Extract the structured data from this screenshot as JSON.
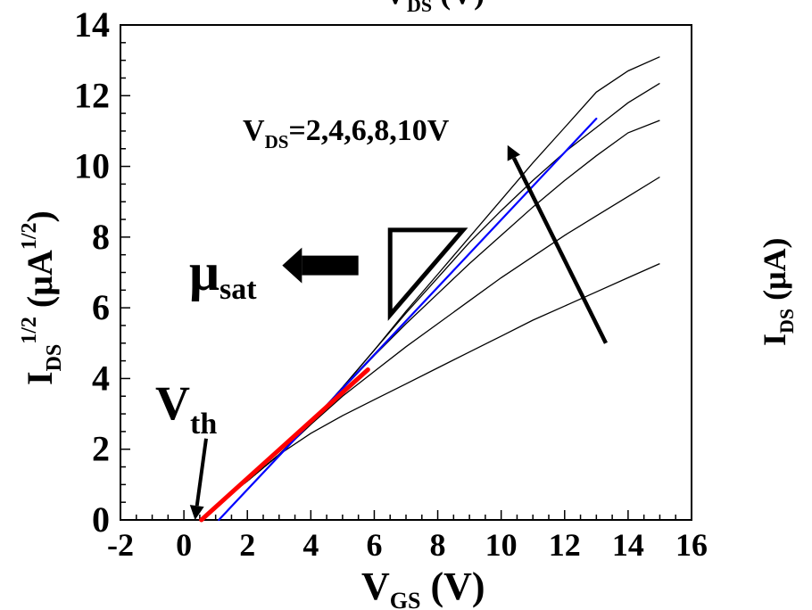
{
  "chart_data": {
    "type": "line",
    "top_label": {
      "main": "V",
      "sub": "DS",
      "rest": " (V)"
    },
    "xlabel": {
      "main": "V",
      "sub": "GS",
      "rest": " (V)"
    },
    "ylabel": {
      "main": "I",
      "sub": "DS",
      "sup": "1/2",
      "rest": " (μA",
      "rest_sup": "1/2",
      "close": ")"
    },
    "ylabel_right": {
      "main": "I",
      "sub": "DS",
      "rest": " (μA)"
    },
    "xlim": [
      -2,
      16
    ],
    "ylim": [
      0,
      14
    ],
    "xticks": [
      -2,
      0,
      2,
      4,
      6,
      8,
      10,
      12,
      14,
      16
    ],
    "yticks": [
      0,
      2,
      4,
      6,
      8,
      10,
      12,
      14
    ],
    "grid": false,
    "series": [
      {
        "color": "#000000",
        "x": [
          0.5,
          1,
          2,
          3,
          4,
          5,
          6,
          7,
          8,
          9,
          10,
          11,
          12,
          13,
          14,
          15
        ],
        "y": [
          0.0,
          0.4,
          1.1,
          1.85,
          2.45,
          2.95,
          3.4,
          3.85,
          4.3,
          4.75,
          5.2,
          5.65,
          6.05,
          6.45,
          6.85,
          7.25
        ]
      },
      {
        "color": "#000000",
        "x": [
          0.5,
          1,
          2,
          3,
          4,
          5,
          6,
          7,
          8,
          9,
          10,
          11,
          12,
          13,
          14,
          15
        ],
        "y": [
          0.0,
          0.4,
          1.1,
          1.85,
          2.7,
          3.5,
          4.2,
          4.9,
          5.55,
          6.2,
          6.85,
          7.45,
          8.05,
          8.6,
          9.15,
          9.7
        ]
      },
      {
        "color": "#000000",
        "x": [
          0.5,
          1,
          2,
          3,
          4,
          5,
          6,
          7,
          8,
          9,
          10,
          11,
          12,
          13,
          14,
          15
        ],
        "y": [
          0.0,
          0.4,
          1.1,
          1.85,
          2.75,
          3.7,
          4.65,
          5.55,
          6.4,
          7.25,
          8.05,
          8.85,
          9.6,
          10.3,
          10.95,
          11.3
        ]
      },
      {
        "color": "#000000",
        "x": [
          0.5,
          1,
          2,
          3,
          4,
          5,
          6,
          7,
          8,
          9,
          10,
          11,
          12,
          13,
          14,
          15
        ],
        "y": [
          0.0,
          0.4,
          1.1,
          1.85,
          2.75,
          3.75,
          4.8,
          5.85,
          6.85,
          7.85,
          8.75,
          9.6,
          10.4,
          11.1,
          11.8,
          12.35
        ]
      },
      {
        "color": "#000000",
        "x": [
          0.5,
          1,
          2,
          3,
          4,
          5,
          6,
          7,
          8,
          9,
          10,
          11,
          12,
          13,
          14,
          15
        ],
        "y": [
          0.0,
          0.4,
          1.1,
          1.85,
          2.75,
          3.75,
          4.8,
          5.9,
          6.95,
          8.0,
          9.05,
          10.1,
          11.1,
          12.1,
          12.7,
          13.1
        ]
      }
    ],
    "fits": [
      {
        "color": "#0000ff",
        "x": [
          1.1,
          13
        ],
        "y": [
          0.0,
          11.35
        ]
      },
      {
        "color": "#ff0000",
        "x": [
          0.55,
          5.8
        ],
        "y": [
          0.0,
          4.25
        ]
      }
    ],
    "annotations": {
      "vds_label": {
        "main": "V",
        "sub": "DS",
        "rest": "=2,4,6,8,10V"
      },
      "vth_label": {
        "main": "V",
        "sub": "th"
      },
      "mu_label": {
        "main": "μ",
        "sub": "sat"
      },
      "vds_arrow": {
        "from": [
          13.3,
          5.0
        ],
        "to": [
          10.2,
          10.6
        ]
      },
      "vth_arrow": {
        "from": [
          0.7,
          2.3
        ],
        "to": [
          0.35,
          0.0
        ]
      },
      "triangle": {
        "points": [
          [
            6.5,
            8.2
          ],
          [
            8.8,
            8.2
          ],
          [
            6.5,
            5.8
          ]
        ]
      },
      "mu_arrow": {
        "from": [
          5.5,
          7.2
        ],
        "to": [
          3.1,
          7.2
        ]
      }
    }
  }
}
